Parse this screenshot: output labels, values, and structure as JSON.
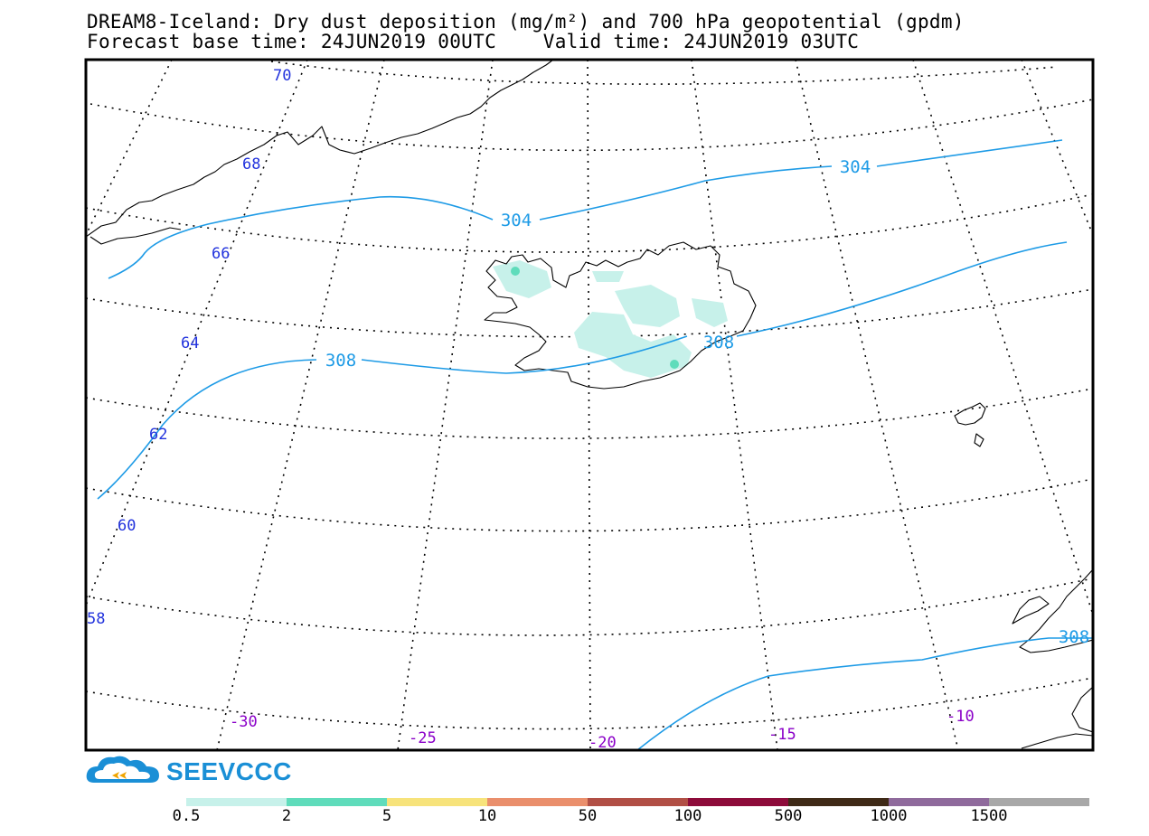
{
  "header": {
    "title_line1": "DREAM8-Iceland: Dry dust deposition (mg/m²) and 700 hPa geopotential (gpdm)",
    "title_line2": "Forecast base time: 24JUN2019 00UTC    Valid time: 24JUN2019 03UTC"
  },
  "map": {
    "latitude_labels": [
      "70",
      "68",
      "66",
      "64",
      "62",
      "60",
      "58"
    ],
    "longitude_labels": [
      "-30",
      "-25",
      "-20",
      "-15",
      "-10"
    ],
    "contour_labels": [
      "304",
      "304",
      "308",
      "308",
      "308"
    ],
    "colors": {
      "contour": "#1e9be6",
      "lat_label": "#2233dd",
      "lon_label": "#8a00c8",
      "deposition_light": "#c7f1ea",
      "deposition_mid": "#5fdcbb"
    }
  },
  "logo": {
    "text": "SEEVCCC"
  },
  "legend": {
    "colors": [
      "#c7f1ea",
      "#5fdcbb",
      "#f7e37b",
      "#ea8f6c",
      "#b14f45",
      "#8d0b3a",
      "#3f2a17",
      "#8f6a9c",
      "#a8a8a8"
    ],
    "labels": [
      "0.5",
      "2",
      "5",
      "10",
      "50",
      "100",
      "500",
      "1000",
      "1500"
    ]
  }
}
